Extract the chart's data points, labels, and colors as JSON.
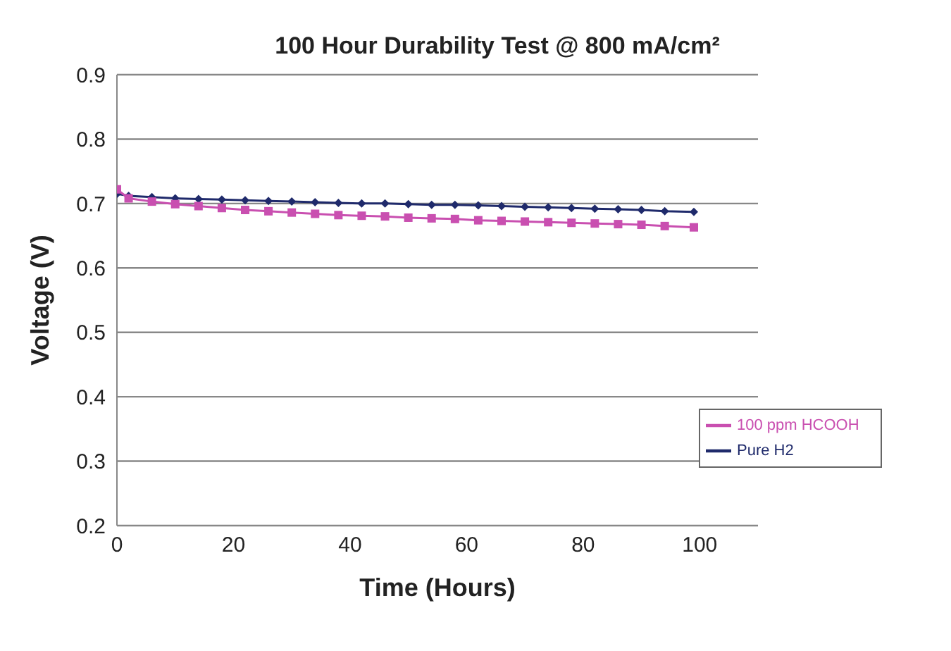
{
  "chart_data": {
    "type": "line",
    "title": "100 Hour Durability Test @ 800 mA/cm²",
    "xlabel": "Time (Hours)",
    "ylabel": "Voltage (V)",
    "xlim": [
      0,
      110
    ],
    "xticks": [
      0,
      20,
      40,
      60,
      80,
      100
    ],
    "ylim": [
      0.2,
      0.9
    ],
    "yticks": [
      0.2,
      0.3,
      0.4,
      0.5,
      0.6,
      0.7,
      0.8,
      0.9
    ],
    "grid": "y",
    "legend": "right",
    "series": [
      {
        "name": "Pure H2",
        "color": "#1f2a6b",
        "marker": "diamond",
        "x": [
          0,
          2,
          6,
          10,
          14,
          18,
          22,
          26,
          30,
          34,
          38,
          42,
          46,
          50,
          54,
          58,
          62,
          66,
          70,
          74,
          78,
          82,
          86,
          90,
          94,
          99
        ],
        "values": [
          0.715,
          0.712,
          0.71,
          0.708,
          0.707,
          0.706,
          0.705,
          0.704,
          0.703,
          0.702,
          0.701,
          0.7,
          0.7,
          0.699,
          0.698,
          0.698,
          0.697,
          0.696,
          0.695,
          0.694,
          0.693,
          0.692,
          0.691,
          0.69,
          0.688,
          0.687
        ]
      },
      {
        "name": "100 ppm HCOOH",
        "color": "#c94fb0",
        "marker": "square",
        "x": [
          0,
          2,
          6,
          10,
          14,
          18,
          22,
          26,
          30,
          34,
          38,
          42,
          46,
          50,
          54,
          58,
          62,
          66,
          70,
          74,
          78,
          82,
          86,
          90,
          94,
          99
        ],
        "values": [
          0.722,
          0.708,
          0.703,
          0.699,
          0.696,
          0.693,
          0.69,
          0.688,
          0.686,
          0.684,
          0.682,
          0.681,
          0.68,
          0.678,
          0.677,
          0.676,
          0.674,
          0.673,
          0.672,
          0.671,
          0.67,
          0.669,
          0.668,
          0.667,
          0.665,
          0.663
        ]
      }
    ]
  }
}
